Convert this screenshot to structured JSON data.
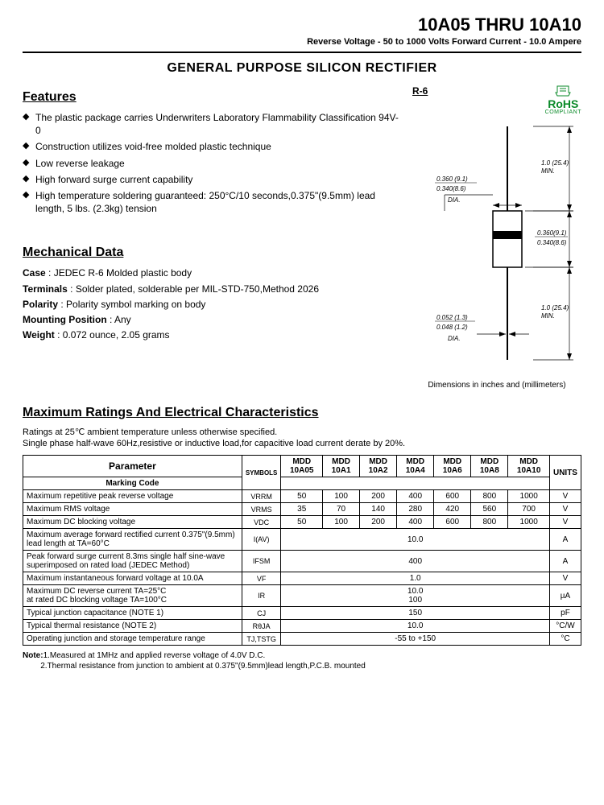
{
  "header": {
    "title": "10A05 THRU 10A10",
    "subtitle": "Reverse Voltage - 50 to 1000 Volts    Forward Current - 10.0 Ampere"
  },
  "main_title": "GENERAL PURPOSE SILICON RECTIFIER",
  "features": {
    "title": "Features",
    "items": [
      "The plastic package carries Underwriters Laboratory Flammability Classification 94V-0",
      "Construction utilizes void-free molded plastic technique",
      "Low reverse leakage",
      "High forward surge current capability",
      "High temperature soldering guaranteed: 250°C/10 seconds,0.375\"(9.5mm) lead length, 5 lbs. (2.3kg) tension"
    ]
  },
  "mechanical": {
    "title": "Mechanical Data",
    "lines": {
      "case_lbl": "Case",
      "case_val": ": JEDEC R-6 Molded plastic body",
      "term_lbl": "Terminals",
      "term_val": ": Solder plated, solderable per MIL-STD-750,Method 2026",
      "pol_lbl": "Polarity",
      "pol_val": ": Polarity symbol  marking on body",
      "mnt_lbl": "Mounting Position",
      "mnt_val": ": Any",
      "wt_lbl": "Weight",
      "wt_val": ": 0.072 ounce, 2.05 grams"
    }
  },
  "diagram": {
    "pkg": "R-6",
    "rohs_big": "RoHS",
    "rohs_small": "COMPLIANT",
    "lead_len": "1.0 (25.4) MIN.",
    "lead_dia_top": "0.360 (9.1)",
    "lead_dia_bot": "0.340(8.6)",
    "lead_dia_lbl": "DIA.",
    "body_h_top": "0.360(9.1)",
    "body_h_bot": "0.340(8.6)",
    "wire_dia_top": "0.052 (1.3)",
    "wire_dia_bot": "0.048 (1.2)",
    "caption": "Dimensions in inches and (millimeters)"
  },
  "ratings": {
    "title": "Maximum Ratings And Electrical Characteristics",
    "note1": "Ratings at 25℃ ambient temperature unless otherwise specified.",
    "note2": "Single phase half-wave 60Hz,resistive or inductive load,for capacitive load current derate by 20%.",
    "headers": {
      "param": "Parameter",
      "symbols": "SYMBOLS",
      "marking": "Marking Code",
      "units": "UNITS",
      "cols": [
        "MDD 10A05",
        "MDD 10A1",
        "MDD 10A2",
        "MDD 10A4",
        "MDD 10A6",
        "MDD 10A8",
        "MDD 10A10"
      ]
    },
    "rows": [
      {
        "p": "Maximum repetitive peak reverse voltage",
        "s": "VRRM",
        "v": [
          "50",
          "100",
          "200",
          "400",
          "600",
          "800",
          "1000"
        ],
        "u": "V"
      },
      {
        "p": "Maximum RMS voltage",
        "s": "VRMS",
        "v": [
          "35",
          "70",
          "140",
          "280",
          "420",
          "560",
          "700"
        ],
        "u": "V"
      },
      {
        "p": "Maximum DC blocking voltage",
        "s": "VDC",
        "v": [
          "50",
          "100",
          "200",
          "400",
          "600",
          "800",
          "1000"
        ],
        "u": "V"
      },
      {
        "p": "Maximum average forward rectified current 0.375\"(9.5mm) lead length at TA=60°C",
        "s": "I(AV)",
        "span": "10.0",
        "u": "A"
      },
      {
        "p": "Peak forward surge current 8.3ms single half sine-wave superimposed on rated load (JEDEC Method)",
        "s": "IFSM",
        "span": "400",
        "u": "A"
      },
      {
        "p": "Maximum instantaneous forward voltage at 10.0A",
        "s": "VF",
        "span": "1.0",
        "u": "V"
      },
      {
        "p": "Maximum DC reverse current      TA=25°C\nat rated DC blocking voltage       TA=100°C",
        "s": "IR",
        "span": "10.0\n100",
        "u": "µA"
      },
      {
        "p": "Typical junction capacitance (NOTE 1)",
        "s": "CJ",
        "span": "150",
        "u": "pF"
      },
      {
        "p": "Typical thermal resistance (NOTE 2)",
        "s": "RθJA",
        "span": "10.0",
        "u": "°C/W"
      },
      {
        "p": "Operating junction and storage temperature range",
        "s": "TJ,TSTG",
        "span": "-55 to +150",
        "u": "°C"
      }
    ]
  },
  "footnotes": {
    "label": "Note:",
    "n1": "1.Measured at 1MHz and applied reverse voltage of 4.0V D.C.",
    "n2": "2.Thermal resistance from junction to ambient  at 0.375\"(9.5mm)lead length,P.C.B. mounted"
  },
  "style": {
    "accent": "#0a8a28",
    "border": "#000000"
  }
}
